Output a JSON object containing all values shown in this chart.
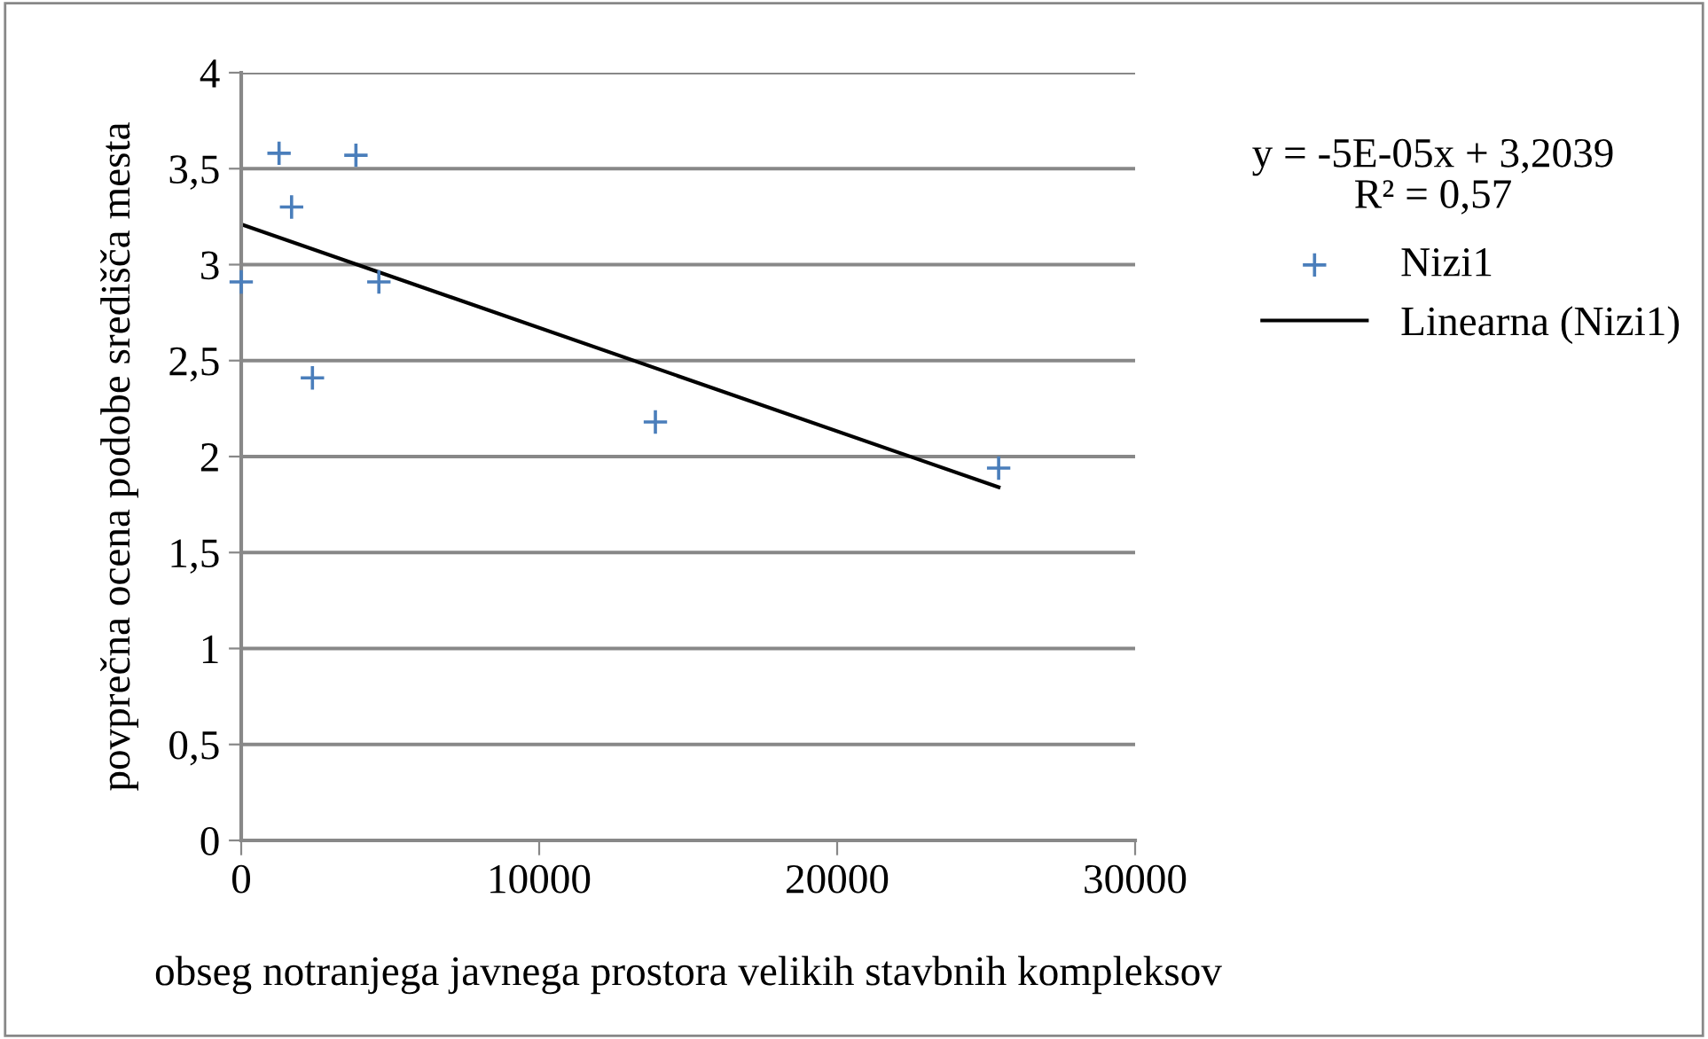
{
  "chart_data": {
    "type": "scatter",
    "xlabel": "obseg notranjega javnega prostora velikih stavbnih kompleksov",
    "ylabel": "povprečna ocena podobe središča mesta",
    "series": [
      {
        "name": "Nizi1",
        "color": "#4a7ebb",
        "marker": "cross",
        "x": [
          0,
          1270,
          1690,
          2390,
          3850,
          4620,
          13900,
          25420
        ],
        "values": [
          2.91,
          3.58,
          3.3,
          2.41,
          3.57,
          2.91,
          2.18,
          1.94
        ]
      },
      {
        "name": "Linearna (Nizi1)",
        "type": "line",
        "color": "#000000",
        "marker": "none",
        "x": [
          0,
          25420
        ],
        "values": [
          3.21,
          1.84
        ]
      }
    ],
    "annotations": [
      "y = -5E-05x + 3,2039\nR² = 0,57"
    ],
    "xlim": [
      0,
      30000
    ],
    "xticks": [
      0,
      10000,
      20000,
      30000
    ],
    "ylim": [
      0,
      4
    ],
    "yticks": [
      0,
      {
        "value": 0.5,
        "label": "0,5"
      },
      1,
      {
        "value": 1.5,
        "label": "1,5"
      },
      2,
      {
        "value": 2.5,
        "label": "2,5"
      },
      3,
      {
        "value": 3.5,
        "label": "3,5"
      },
      4
    ],
    "grid": "y",
    "legend": "right"
  }
}
